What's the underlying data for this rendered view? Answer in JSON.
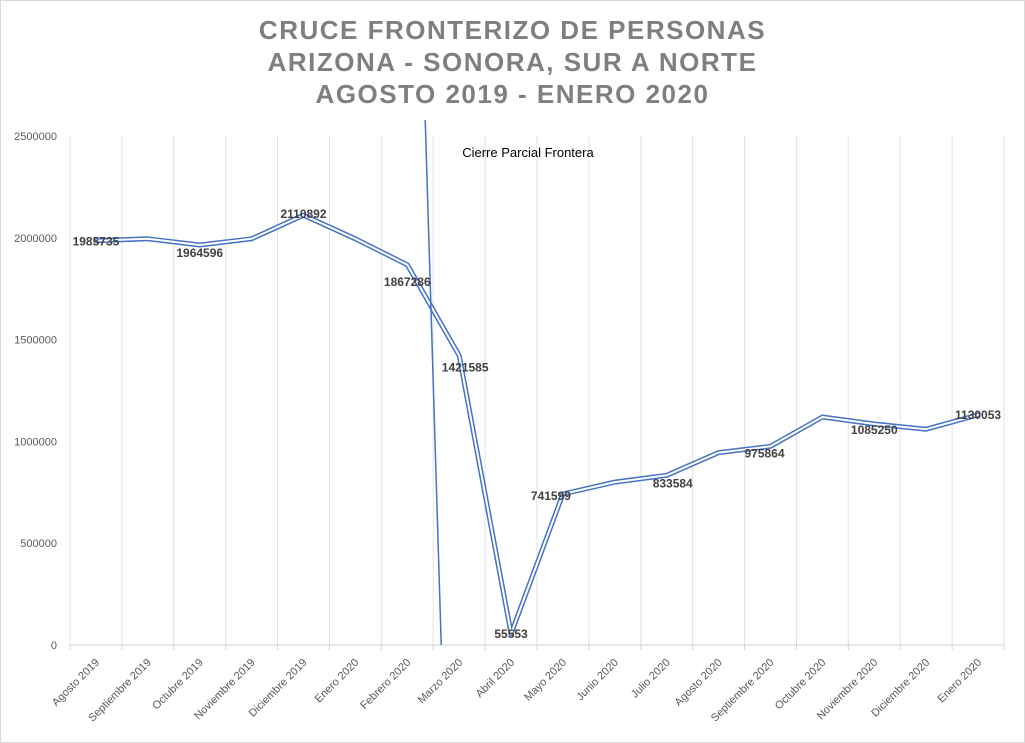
{
  "chart_data": {
    "type": "line",
    "title_lines": [
      "CRUCE FRONTERIZO DE PERSONAS",
      "ARIZONA - SONORA, SUR A NORTE",
      "AGOSTO 2019 - ENERO 2020"
    ],
    "xlabel": "",
    "ylabel": "",
    "categories": [
      "Agosto 2019",
      "Septiembre 2019",
      "Octubre 2019",
      "Noviembre 2019",
      "Diciembre 2019",
      "Enero 2020",
      "Febrero 2020",
      "Marzo 2020",
      "Abril 2020",
      "Mayo 2020",
      "Junio 2020",
      "Julio 2020",
      "Agosto 2020",
      "Septiembre 2020",
      "Octubre 2020",
      "Noviembre 2020",
      "Diciembre 2020",
      "Enero 2020"
    ],
    "series": [
      {
        "values": [
          1985735,
          1995000,
          1964596,
          1995000,
          2110892,
          1995000,
          1867286,
          1421585,
          55553,
          741599,
          800000,
          833584,
          945000,
          975864,
          1120000,
          1085250,
          1060000,
          1130053
        ],
        "data_labels": [
          "1985735",
          "",
          "1964596",
          "",
          "2110892",
          "",
          "1867286",
          "1421585",
          "55553",
          "741599",
          "",
          "833584",
          "",
          "975864",
          "",
          "1085250",
          "",
          "1130053"
        ],
        "color": "#4472c4"
      }
    ],
    "ylim": [
      0,
      2500000
    ],
    "yticks": [
      "0",
      "500000",
      "1000000",
      "1500000",
      "2000000",
      "2500000"
    ],
    "grid": "vertical",
    "annotation": {
      "text": "Cierre Parcial Frontera",
      "line_x_category": "Marzo 2020",
      "line_color": "#4472c4"
    }
  }
}
